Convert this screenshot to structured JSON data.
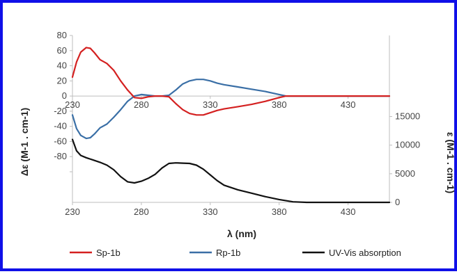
{
  "chart_data": {
    "type": "line",
    "xlabel": "λ (nm)",
    "ylabel_left": "Δε (M-1 . cm-1)",
    "ylabel_right": "ε (M-1 . cm-1)",
    "x_ticks": [
      230,
      280,
      330,
      380,
      430
    ],
    "xlim": [
      230,
      460
    ],
    "cd_panel": {
      "ylim": [
        -100,
        80
      ],
      "y_ticks": [
        80,
        60,
        40,
        20,
        0,
        -20,
        -40,
        -60,
        -80
      ],
      "series": [
        {
          "name": "Sp-1b",
          "color": "#d42020",
          "points": [
            [
              230,
              25
            ],
            [
              233,
              45
            ],
            [
              236,
              58
            ],
            [
              240,
              64
            ],
            [
              243,
              63
            ],
            [
              246,
              57
            ],
            [
              250,
              48
            ],
            [
              255,
              43
            ],
            [
              260,
              34
            ],
            [
              265,
              20
            ],
            [
              270,
              8
            ],
            [
              275,
              -2
            ],
            [
              280,
              -3
            ],
            [
              285,
              -1
            ],
            [
              290,
              0
            ],
            [
              295,
              0
            ],
            [
              300,
              -1
            ],
            [
              305,
              -10
            ],
            [
              310,
              -18
            ],
            [
              315,
              -23
            ],
            [
              320,
              -25
            ],
            [
              325,
              -25
            ],
            [
              330,
              -22
            ],
            [
              335,
              -19
            ],
            [
              340,
              -17
            ],
            [
              350,
              -14
            ],
            [
              360,
              -11
            ],
            [
              370,
              -7
            ],
            [
              380,
              -2
            ],
            [
              385,
              0
            ],
            [
              390,
              0
            ],
            [
              400,
              0
            ],
            [
              420,
              0
            ],
            [
              440,
              0
            ],
            [
              460,
              0
            ]
          ]
        },
        {
          "name": "Rp-1b",
          "color": "#3a6fa6",
          "points": [
            [
              230,
              -25
            ],
            [
              233,
              -43
            ],
            [
              236,
              -52
            ],
            [
              240,
              -56
            ],
            [
              243,
              -55
            ],
            [
              246,
              -50
            ],
            [
              250,
              -42
            ],
            [
              255,
              -37
            ],
            [
              260,
              -28
            ],
            [
              265,
              -18
            ],
            [
              270,
              -7
            ],
            [
              275,
              0
            ],
            [
              280,
              2
            ],
            [
              285,
              1
            ],
            [
              290,
              0
            ],
            [
              295,
              0
            ],
            [
              300,
              1
            ],
            [
              305,
              8
            ],
            [
              310,
              16
            ],
            [
              315,
              20
            ],
            [
              320,
              22
            ],
            [
              325,
              22
            ],
            [
              330,
              20
            ],
            [
              335,
              17
            ],
            [
              340,
              15
            ],
            [
              350,
              12
            ],
            [
              360,
              9
            ],
            [
              370,
              6
            ],
            [
              380,
              2
            ],
            [
              385,
              0
            ],
            [
              390,
              0
            ],
            [
              400,
              0
            ],
            [
              420,
              0
            ],
            [
              440,
              0
            ],
            [
              460,
              0
            ]
          ]
        }
      ]
    },
    "uv_panel": {
      "ylim": [
        0,
        17500
      ],
      "y_ticks": [
        0,
        5000,
        10000,
        15000
      ],
      "series": [
        {
          "name": "UV-Vis absorption",
          "color": "#111111",
          "points": [
            [
              230,
              11000
            ],
            [
              233,
              9000
            ],
            [
              236,
              8200
            ],
            [
              240,
              7800
            ],
            [
              245,
              7400
            ],
            [
              250,
              7000
            ],
            [
              255,
              6500
            ],
            [
              260,
              5700
            ],
            [
              265,
              4500
            ],
            [
              270,
              3600
            ],
            [
              275,
              3400
            ],
            [
              280,
              3700
            ],
            [
              285,
              4200
            ],
            [
              290,
              4900
            ],
            [
              295,
              6000
            ],
            [
              300,
              6800
            ],
            [
              305,
              6900
            ],
            [
              310,
              6850
            ],
            [
              315,
              6800
            ],
            [
              320,
              6500
            ],
            [
              325,
              5800
            ],
            [
              330,
              4800
            ],
            [
              335,
              3800
            ],
            [
              340,
              3000
            ],
            [
              350,
              2200
            ],
            [
              360,
              1600
            ],
            [
              370,
              1000
            ],
            [
              380,
              500
            ],
            [
              390,
              100
            ],
            [
              400,
              0
            ],
            [
              420,
              0
            ],
            [
              440,
              0
            ],
            [
              460,
              0
            ]
          ]
        }
      ]
    },
    "legend": [
      {
        "label": "Sp-1b",
        "color": "#d42020"
      },
      {
        "label": "Rp-1b",
        "color": "#3a6fa6"
      },
      {
        "label": "UV-Vis absorption",
        "color": "#111111"
      }
    ]
  }
}
